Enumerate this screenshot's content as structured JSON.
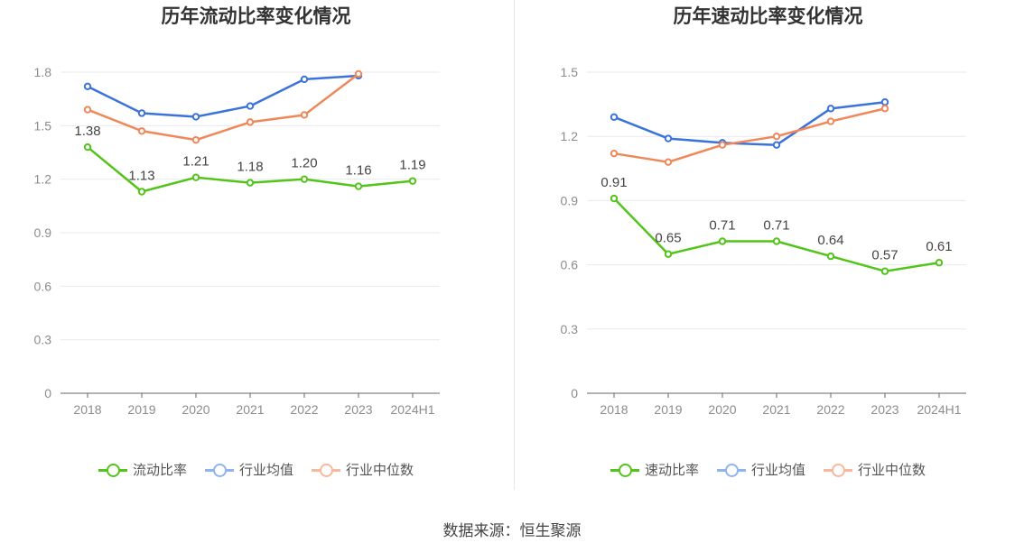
{
  "chart_data": [
    {
      "type": "line",
      "title": "历年流动比率变化情况",
      "categories": [
        "2018",
        "2019",
        "2020",
        "2021",
        "2022",
        "2023",
        "2024H1"
      ],
      "ylim": [
        0,
        1.8
      ],
      "yticks": [
        "0",
        "0.3",
        "0.6",
        "0.9",
        "1.2",
        "1.5",
        "1.8"
      ],
      "grid": true,
      "legend_position": "bottom",
      "series": [
        {
          "name": "流动比率",
          "color": "#52c41a",
          "labels": true,
          "values": [
            1.38,
            1.13,
            1.21,
            1.18,
            1.2,
            1.16,
            1.19
          ],
          "value_labels": [
            "1.38",
            "1.13",
            "1.21",
            "1.18",
            "1.20",
            "1.16",
            "1.19"
          ]
        },
        {
          "name": "行业均值",
          "color": "#3b73d9",
          "labels": false,
          "values": [
            1.72,
            1.57,
            1.55,
            1.61,
            1.76,
            1.78,
            null
          ]
        },
        {
          "name": "行业中位数",
          "color": "#f0875a",
          "labels": false,
          "values": [
            1.59,
            1.47,
            1.42,
            1.52,
            1.56,
            1.79,
            null
          ]
        }
      ]
    },
    {
      "type": "line",
      "title": "历年速动比率变化情况",
      "categories": [
        "2018",
        "2019",
        "2020",
        "2021",
        "2022",
        "2023",
        "2024H1"
      ],
      "ylim": [
        0,
        1.5
      ],
      "yticks": [
        "0",
        "0.3",
        "0.6",
        "0.9",
        "1.2",
        "1.5"
      ],
      "grid": true,
      "legend_position": "bottom",
      "series": [
        {
          "name": "速动比率",
          "color": "#52c41a",
          "labels": true,
          "values": [
            0.91,
            0.65,
            0.71,
            0.71,
            0.64,
            0.57,
            0.61
          ],
          "value_labels": [
            "0.91",
            "0.65",
            "0.71",
            "0.71",
            "0.64",
            "0.57",
            "0.61"
          ]
        },
        {
          "name": "行业均值",
          "color": "#3b73d9",
          "labels": false,
          "values": [
            1.29,
            1.19,
            1.17,
            1.16,
            1.33,
            1.36,
            null
          ]
        },
        {
          "name": "行业中位数",
          "color": "#f0875a",
          "labels": false,
          "values": [
            1.12,
            1.08,
            1.16,
            1.2,
            1.27,
            1.33,
            null
          ]
        }
      ]
    }
  ],
  "legend_colors": {
    "流动比率": "#52c41a",
    "速动比率": "#52c41a",
    "行业均值": "#8fb4f0",
    "行业中位数": "#f7b89c"
  },
  "footer": {
    "source": "数据来源：恒生聚源"
  }
}
